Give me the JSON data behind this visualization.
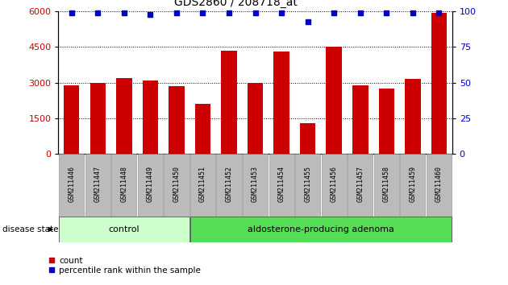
{
  "title": "GDS2860 / 208718_at",
  "samples": [
    "GSM211446",
    "GSM211447",
    "GSM211448",
    "GSM211449",
    "GSM211450",
    "GSM211451",
    "GSM211452",
    "GSM211453",
    "GSM211454",
    "GSM211455",
    "GSM211456",
    "GSM211457",
    "GSM211458",
    "GSM211459",
    "GSM211460"
  ],
  "counts": [
    2900,
    3000,
    3200,
    3100,
    2850,
    2100,
    4350,
    2980,
    4300,
    1300,
    4500,
    2900,
    2750,
    3150,
    5950
  ],
  "percentile_ranks": [
    99,
    99,
    99,
    98,
    99,
    99,
    99,
    99,
    99,
    93,
    99,
    99,
    99,
    99,
    99
  ],
  "ylim_left": [
    0,
    6000
  ],
  "ylim_right": [
    0,
    100
  ],
  "yticks_left": [
    0,
    1500,
    3000,
    4500,
    6000
  ],
  "yticks_right": [
    0,
    25,
    50,
    75,
    100
  ],
  "bar_color": "#cc0000",
  "dot_color": "#0000cc",
  "group_labels": [
    "control",
    "aldosterone-producing adenoma"
  ],
  "group_ranges": [
    [
      0,
      4
    ],
    [
      5,
      14
    ]
  ],
  "group_colors": [
    "#ccffcc",
    "#55dd55"
  ],
  "disease_state_label": "disease state",
  "legend_count_label": "count",
  "legend_pct_label": "percentile rank within the sample",
  "bg_color": "#ffffff",
  "tick_label_bg": "#bbbbbb",
  "grid_color": "#000000",
  "title_fontsize": 10,
  "axis_fontsize": 8,
  "label_fontsize": 8
}
